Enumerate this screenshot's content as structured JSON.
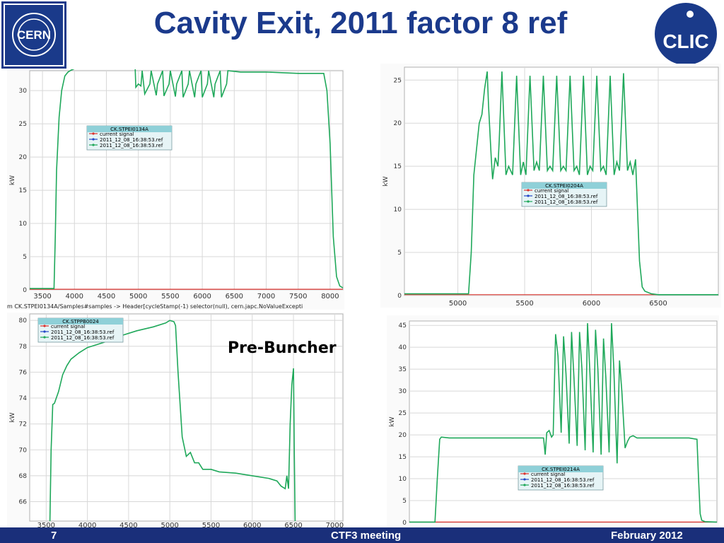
{
  "slide": {
    "title": "Cavity Exit, 2011 factor 8 ref",
    "page_number": "7",
    "footer_center": "CTF3 meeting",
    "footer_right": "February 2012",
    "annotation": "Pre-Buncher",
    "cern_logo_text": "CERN",
    "clic_logo_text": "CLIC"
  },
  "colors": {
    "title": "#1b3a8c",
    "footer_bg": "#1a2f7a",
    "series_current": "#d9302c",
    "series_ref_blue": "#2346c8",
    "series_ref_green": "#1fa85a",
    "legend_header_bg": "#8fd0d8"
  },
  "chart_data": [
    {
      "type": "line",
      "legend_title": "CK.STPEI0134A",
      "ylabel": "kW",
      "xlim": [
        3300,
        8200
      ],
      "ylim": [
        0,
        33
      ],
      "x_ticks": [
        "3500",
        "4000",
        "4500",
        "5000",
        "5500",
        "6000",
        "6500",
        "7000",
        "7500",
        "8000"
      ],
      "y_ticks": [
        "0",
        "5",
        "10",
        "15",
        "20",
        "25",
        "30"
      ],
      "status_text": "m CK.STPEI0134A/Samples#samples -> Header[cycleStamp(-1) selector(null), cern.japc.NoValueExcepti",
      "series": [
        {
          "name": "current signal",
          "color": "#d9302c",
          "x": [
            3300,
            8200
          ],
          "y": [
            0.1,
            0.1
          ]
        },
        {
          "name": "2011_12_08_16:38:53.ref",
          "color": "#2346c8",
          "x": [],
          "y": []
        },
        {
          "name": "2011_12_08_16:38:53.ref",
          "color": "#1fa85a",
          "x": [
            3300,
            3680,
            3700,
            3720,
            3760,
            3800,
            3850,
            3900,
            3950,
            4000,
            4200,
            4500,
            4800,
            4950,
            4960,
            5000,
            5040,
            5060,
            5100,
            5180,
            5200,
            5280,
            5300,
            5380,
            5400,
            5480,
            5500,
            5580,
            5600,
            5680,
            5700,
            5780,
            5800,
            5880,
            5900,
            5980,
            6000,
            6080,
            6100,
            6180,
            6200,
            6280,
            6300,
            6380,
            6400,
            6500,
            6600,
            7000,
            7500,
            7900,
            7950,
            8000,
            8050,
            8100,
            8150,
            8200
          ],
          "y": [
            0.2,
            0.2,
            8,
            18,
            26,
            30,
            32.2,
            32.8,
            33.1,
            33.3,
            33.3,
            33.4,
            33.4,
            33.4,
            30.5,
            31.0,
            30.7,
            33,
            29.5,
            31,
            33,
            29.3,
            31,
            33,
            29.2,
            31,
            33,
            29.1,
            31,
            33,
            29.0,
            31,
            33,
            29.0,
            31,
            33,
            29.0,
            31,
            33,
            29.0,
            31,
            33,
            29.0,
            31,
            33,
            32.9,
            32.8,
            32.8,
            32.6,
            32.6,
            30,
            22,
            8,
            2,
            0.6,
            0.3
          ]
        }
      ]
    },
    {
      "type": "line",
      "legend_title": "CK.STPEI0204A",
      "ylabel": "kW",
      "xlim": [
        4600,
        6950
      ],
      "ylim": [
        0,
        26.5
      ],
      "x_ticks": [
        "5000",
        "5500",
        "6000",
        "6500"
      ],
      "y_ticks": [
        "0",
        "5",
        "10",
        "15",
        "20",
        "25"
      ],
      "series": [
        {
          "name": "current signal",
          "color": "#d9302c",
          "x": [
            4600,
            6950
          ],
          "y": [
            0.1,
            0.1
          ]
        },
        {
          "name": "2011_12_08_16:38:53.ref",
          "color": "#2346c8",
          "x": [],
          "y": []
        },
        {
          "name": "2011_12_08_16:38:53.ref",
          "color": "#1fa85a",
          "x": [
            4600,
            5080,
            5100,
            5120,
            5140,
            5160,
            5180,
            5200,
            5220,
            5230,
            5250,
            5260,
            5280,
            5300,
            5310,
            5330,
            5360,
            5380,
            5410,
            5440,
            5470,
            5490,
            5510,
            5540,
            5570,
            5590,
            5610,
            5640,
            5670,
            5690,
            5710,
            5740,
            5770,
            5790,
            5810,
            5840,
            5870,
            5890,
            5910,
            5940,
            5970,
            5990,
            6010,
            6040,
            6070,
            6090,
            6110,
            6140,
            6170,
            6190,
            6210,
            6240,
            6270,
            6290,
            6310,
            6330,
            6360,
            6380,
            6400,
            6450,
            6500,
            6950
          ],
          "y": [
            0.2,
            0.2,
            5,
            14,
            17,
            20,
            21,
            24,
            26,
            22,
            16,
            13.5,
            16,
            15,
            18,
            26,
            14,
            15,
            14,
            25.5,
            14,
            15.5,
            14,
            25.5,
            14.5,
            15.5,
            14.5,
            25.5,
            14.5,
            15,
            14.5,
            25.5,
            14.5,
            15,
            14.5,
            25.5,
            14.5,
            15,
            14,
            25.5,
            14,
            15,
            14.5,
            25.5,
            14.5,
            15,
            14,
            25.5,
            14,
            15.5,
            14.5,
            25.8,
            14.5,
            15.5,
            14,
            15.8,
            4,
            1,
            0.5,
            0.2,
            0.1,
            0.1
          ]
        }
      ]
    },
    {
      "type": "line",
      "legend_title": "CK.STPPB0024",
      "ylabel": "kW",
      "xlim": [
        3300,
        7100
      ],
      "ylim": [
        64.5,
        80.5
      ],
      "x_ticks": [
        "3500",
        "4000",
        "4500",
        "5000",
        "5500",
        "6000",
        "6500",
        "7000"
      ],
      "y_ticks": [
        "66",
        "68",
        "70",
        "72",
        "74",
        "76",
        "78",
        "80"
      ],
      "series": [
        {
          "name": "current signal",
          "color": "#d9302c",
          "x": [],
          "y": []
        },
        {
          "name": "2011_12_08_16:38:53.ref",
          "color": "#2346c8",
          "x": [],
          "y": []
        },
        {
          "name": "2011_12_08_16:38:53.ref",
          "color": "#1fa85a",
          "x": [
            3545,
            3560,
            3580,
            3600,
            3650,
            3700,
            3750,
            3800,
            3900,
            4000,
            4200,
            4400,
            4600,
            4800,
            4950,
            5000,
            5050,
            5070,
            5100,
            5150,
            5200,
            5250,
            5300,
            5350,
            5400,
            5500,
            5600,
            5800,
            6000,
            6200,
            6300,
            6350,
            6400,
            6420,
            6440,
            6460,
            6480,
            6500,
            6510,
            6520
          ],
          "y": [
            64.5,
            70,
            73.5,
            73.6,
            74.5,
            75.8,
            76.5,
            77,
            77.5,
            77.9,
            78.3,
            78.8,
            79.2,
            79.5,
            79.8,
            80,
            79.9,
            79.6,
            76,
            71,
            69.5,
            69.8,
            69,
            69,
            68.5,
            68.5,
            68.3,
            68.2,
            68.0,
            67.8,
            67.6,
            67.2,
            67.0,
            68,
            67,
            72,
            75,
            76.3,
            70,
            64.5
          ]
        }
      ]
    },
    {
      "type": "line",
      "legend_title": "CK.STPEI0214A",
      "ylabel": "kW",
      "xlim": [
        3300,
        7150
      ],
      "ylim": [
        0,
        46
      ],
      "x_ticks": [],
      "y_ticks": [
        "0",
        "5",
        "10",
        "15",
        "20",
        "25",
        "30",
        "35",
        "40",
        "45"
      ],
      "series": [
        {
          "name": "current signal",
          "color": "#d9302c",
          "x": [
            3300,
            7150
          ],
          "y": [
            0.1,
            0.1
          ]
        },
        {
          "name": "2011_12_08_16:38:53.ref",
          "color": "#2346c8",
          "x": [],
          "y": []
        },
        {
          "name": "2011_12_08_16:38:53.ref",
          "color": "#1fa85a",
          "x": [
            3300,
            3620,
            3650,
            3680,
            3700,
            3800,
            4000,
            4500,
            4980,
            5000,
            5020,
            5050,
            5080,
            5100,
            5130,
            5160,
            5200,
            5230,
            5260,
            5300,
            5330,
            5360,
            5400,
            5430,
            5460,
            5500,
            5530,
            5560,
            5600,
            5630,
            5660,
            5700,
            5730,
            5760,
            5800,
            5830,
            5860,
            5900,
            5930,
            5960,
            6000,
            6030,
            6060,
            6100,
            6150,
            6200,
            6400,
            6800,
            6900,
            6920,
            6940,
            6960,
            7000,
            7150
          ],
          "y": [
            0.1,
            0.1,
            10,
            19,
            19.5,
            19.3,
            19.3,
            19.3,
            19.3,
            15.5,
            20.5,
            21,
            19.5,
            20,
            43,
            38,
            20.5,
            42.5,
            34,
            18,
            43.5,
            33,
            17.5,
            43.5,
            35,
            16.5,
            45.5,
            34,
            16,
            44,
            35,
            15.5,
            42,
            33,
            16,
            45.5,
            35,
            13.5,
            37,
            30,
            17,
            18.5,
            19.5,
            19.8,
            19.3,
            19.3,
            19.3,
            19.3,
            19,
            10,
            2,
            0.5,
            0.2,
            0.1
          ]
        }
      ]
    }
  ]
}
